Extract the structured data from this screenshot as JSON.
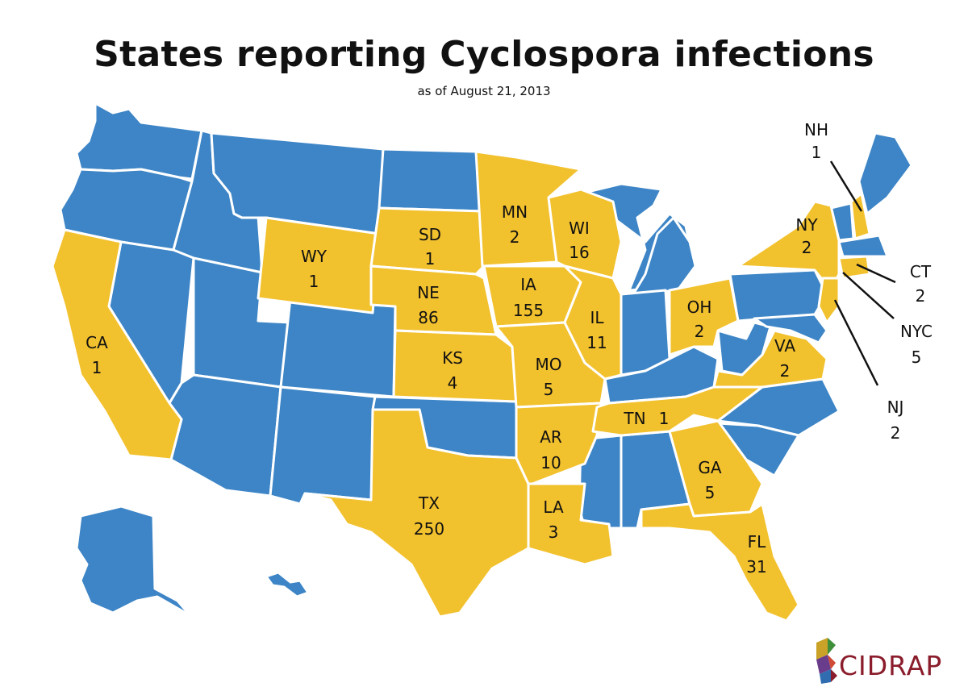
{
  "title": "States reporting Cyclospora infections",
  "subtitle": "as of August 21, 2013",
  "colors": {
    "reporting": "#f2c12e",
    "not_reporting": "#3d85c6",
    "brand": "#8a1c2b"
  },
  "brand": "CIDRAP",
  "states": [
    {
      "abbr": "NH",
      "count": "1"
    },
    {
      "abbr": "NY",
      "count": "2"
    },
    {
      "abbr": "CT",
      "count": "2"
    },
    {
      "abbr": "NYC",
      "count": "5"
    },
    {
      "abbr": "NJ",
      "count": "2"
    },
    {
      "abbr": "WY",
      "count": "1"
    },
    {
      "abbr": "SD",
      "count": "1"
    },
    {
      "abbr": "MN",
      "count": "2"
    },
    {
      "abbr": "WI",
      "count": "16"
    },
    {
      "abbr": "NE",
      "count": "86"
    },
    {
      "abbr": "IA",
      "count": "155"
    },
    {
      "abbr": "IL",
      "count": "11"
    },
    {
      "abbr": "OH",
      "count": "2"
    },
    {
      "abbr": "CA",
      "count": "1"
    },
    {
      "abbr": "KS",
      "count": "4"
    },
    {
      "abbr": "MO",
      "count": "5"
    },
    {
      "abbr": "VA",
      "count": "2"
    },
    {
      "abbr": "TN",
      "count": "1"
    },
    {
      "abbr": "AR",
      "count": "10"
    },
    {
      "abbr": "TX",
      "count": "250"
    },
    {
      "abbr": "LA",
      "count": "3"
    },
    {
      "abbr": "GA",
      "count": "5"
    },
    {
      "abbr": "FL",
      "count": "31"
    }
  ]
}
